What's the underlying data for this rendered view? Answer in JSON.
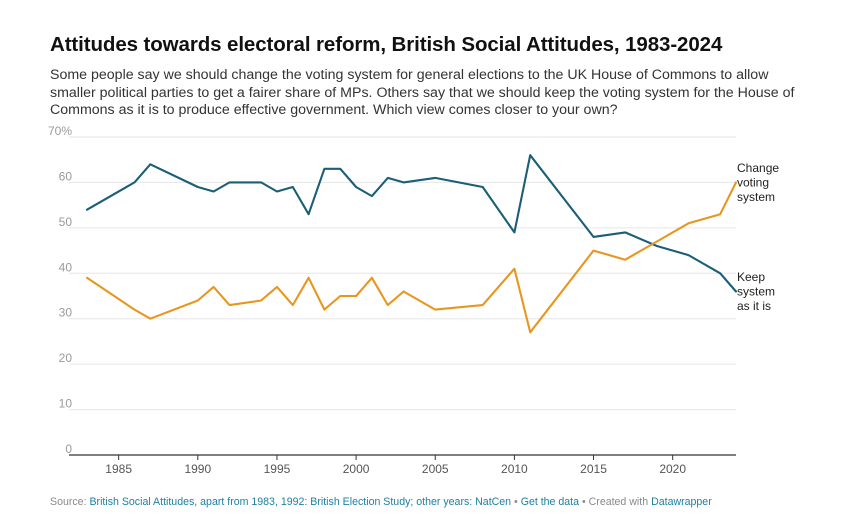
{
  "title": "Attitudes towards electoral reform, British Social Attitudes, 1983-2024",
  "subtitle": "Some people say we should change the voting system for general elections to the UK House of Commons to allow smaller political parties to get a fairer share of MPs. Others say that we should keep the voting system for the House of Commons as it is to produce effective government. Which view comes closer to your own?",
  "footer": {
    "source_label": "Source:",
    "source_text": "British Social Attitudes, apart from 1983, 1992: British Election Study; other years: NatCen",
    "separator": "•",
    "get_data": "Get the data",
    "created_with": "Created with",
    "tool": "Datawrapper"
  },
  "chart_data": {
    "type": "line",
    "title": "Attitudes towards electoral reform, British Social Attitudes, 1983-2024",
    "xlabel": "",
    "ylabel": "",
    "xlim": [
      1983,
      2024
    ],
    "ylim": [
      0,
      70
    ],
    "x_ticks": [
      1985,
      1990,
      1995,
      2000,
      2005,
      2010,
      2015,
      2020
    ],
    "y_ticks": [
      0,
      10,
      20,
      30,
      40,
      50,
      60,
      70
    ],
    "y_tick_labels": [
      "0",
      "10",
      "20",
      "30",
      "40",
      "50",
      "60",
      "70%"
    ],
    "grid": true,
    "legend": "direct labels at line ends (right)",
    "colors": {
      "keep": "#1b5e77",
      "change": "#e8961f",
      "grid": "#e6e6e6",
      "axis": "#333333"
    },
    "series": [
      {
        "name": "Keep system as it is",
        "label_lines": [
          "Keep",
          "system",
          "as it is"
        ],
        "color": "#1b5e77",
        "points": [
          [
            1983,
            54
          ],
          [
            1986,
            60
          ],
          [
            1987,
            64
          ],
          [
            1990,
            59
          ],
          [
            1991,
            58
          ],
          [
            1992,
            60
          ],
          [
            1994,
            60
          ],
          [
            1995,
            58
          ],
          [
            1996,
            59
          ],
          [
            1997,
            53
          ],
          [
            1998,
            63
          ],
          [
            1999,
            63
          ],
          [
            2000,
            59
          ],
          [
            2001,
            57
          ],
          [
            2002,
            61
          ],
          [
            2003,
            60
          ],
          [
            2005,
            61
          ],
          [
            2008,
            59
          ],
          [
            2010,
            49
          ],
          [
            2011,
            66
          ],
          [
            2015,
            48
          ],
          [
            2017,
            49
          ],
          [
            2019,
            46
          ],
          [
            2021,
            44
          ],
          [
            2023,
            40
          ],
          [
            2024,
            36
          ]
        ]
      },
      {
        "name": "Change voting system",
        "label_lines": [
          "Change",
          "voting",
          "system"
        ],
        "color": "#e8961f",
        "points": [
          [
            1983,
            39
          ],
          [
            1986,
            32
          ],
          [
            1987,
            30
          ],
          [
            1990,
            34
          ],
          [
            1991,
            37
          ],
          [
            1992,
            33
          ],
          [
            1994,
            34
          ],
          [
            1995,
            37
          ],
          [
            1996,
            33
          ],
          [
            1997,
            39
          ],
          [
            1998,
            32
          ],
          [
            1999,
            35
          ],
          [
            2000,
            35
          ],
          [
            2001,
            39
          ],
          [
            2002,
            33
          ],
          [
            2003,
            36
          ],
          [
            2005,
            32
          ],
          [
            2008,
            33
          ],
          [
            2010,
            41
          ],
          [
            2011,
            27
          ],
          [
            2015,
            45
          ],
          [
            2017,
            43
          ],
          [
            2019,
            47
          ],
          [
            2021,
            51
          ],
          [
            2023,
            53
          ],
          [
            2024,
            60
          ]
        ]
      }
    ]
  }
}
